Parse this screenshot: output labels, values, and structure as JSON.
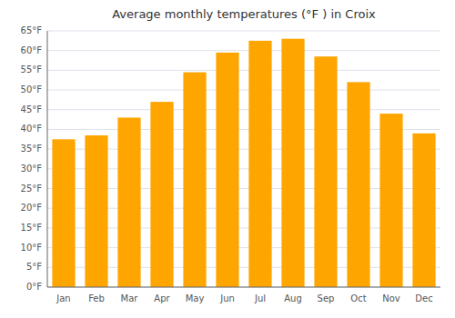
{
  "chart_data": {
    "type": "bar",
    "title": "Average monthly temperatures (°F ) in Croix",
    "categories": [
      "Jan",
      "Feb",
      "Mar",
      "Apr",
      "May",
      "Jun",
      "Jul",
      "Aug",
      "Sep",
      "Oct",
      "Nov",
      "Dec"
    ],
    "values": [
      37.5,
      38.5,
      43.0,
      47.0,
      54.5,
      59.5,
      62.5,
      63.0,
      58.5,
      52.0,
      44.0,
      39.0
    ],
    "color": "#FFA500",
    "ylim": [
      0,
      65
    ],
    "yticks": [
      {
        "value": 0,
        "label": "0°F"
      },
      {
        "value": 5,
        "label": "5°F"
      },
      {
        "value": 10,
        "label": "10°F"
      },
      {
        "value": 15,
        "label": "15°F"
      },
      {
        "value": 20,
        "label": "20°F"
      },
      {
        "value": 25,
        "label": "25°F"
      },
      {
        "value": 30,
        "label": "30°F"
      },
      {
        "value": 35,
        "label": "35°F"
      },
      {
        "value": 40,
        "label": "40°F"
      },
      {
        "value": 45,
        "label": "45°F"
      },
      {
        "value": 50,
        "label": "50°F"
      },
      {
        "value": 55,
        "label": "55°F"
      },
      {
        "value": 60,
        "label": "60°F"
      },
      {
        "value": 65,
        "label": "65°F"
      }
    ],
    "grid": true
  }
}
